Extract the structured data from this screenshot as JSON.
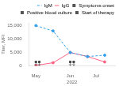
{
  "chart_data": {
    "type": "line",
    "xlabel": "2022",
    "ylabel": "Titer, MFI",
    "x": [
      0,
      1,
      2,
      3,
      4
    ],
    "series": [
      {
        "name": "IgM",
        "line_style": "dashed",
        "marker": "circle",
        "values": [
          15000,
          13000,
          5000,
          3500,
          4000
        ]
      },
      {
        "name": "IgG",
        "line_style": "solid",
        "marker": "circle",
        "values": [
          200,
          1200,
          5000,
          3500,
          1500
        ]
      }
    ],
    "events": {
      "x": [
        [
          0,
          0.2
        ],
        [
          2.0,
          2.2
        ]
      ],
      "marker_y": 1500,
      "arrow_top": 1400,
      "arrow_bottom": 100,
      "color": "#444444",
      "marker": "square"
    },
    "legend_markers": [
      {
        "name": "Symptoms onset",
        "color": "#555555",
        "marker": "square"
      },
      {
        "name": "Positive blood culture",
        "color": "#555555",
        "marker": "square"
      },
      {
        "name": "Start of therapy",
        "color": "#555555",
        "marker": "square"
      }
    ],
    "xlim": [
      -0.4,
      4.6
    ],
    "xticks": [
      {
        "value": 0,
        "label": "May"
      },
      {
        "value": 2,
        "label": "Jun"
      },
      {
        "value": 3.5,
        "label": "Jul"
      }
    ],
    "ylim": [
      0,
      16000
    ],
    "yticks": [
      0,
      {
        "value": 5000,
        "label": "5,000"
      },
      {
        "value": 10000,
        "label": "10,000"
      },
      {
        "value": 15000,
        "label": "15,000"
      }
    ],
    "grid": false,
    "legend": "upper right"
  }
}
